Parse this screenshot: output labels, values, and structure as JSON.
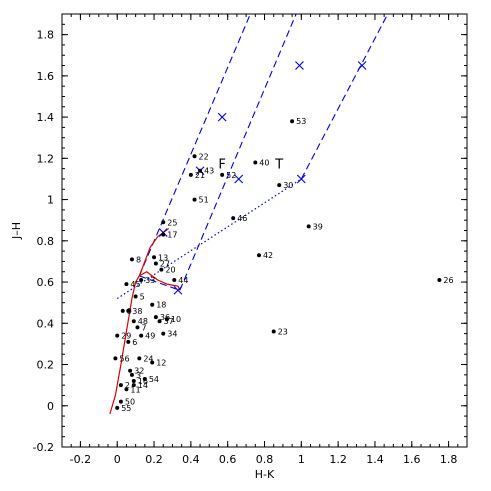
{
  "chart_data": {
    "type": "scatter",
    "xlabel": "H-K",
    "ylabel": "J–H",
    "xlim": [
      -0.3,
      1.9
    ],
    "ylim": [
      -0.2,
      1.9
    ],
    "xticks": [
      -0.2,
      0,
      0.2,
      0.4,
      0.6,
      0.8,
      1,
      1.2,
      1.4,
      1.6,
      1.8
    ],
    "xtick_labels": [
      "-0.2",
      "0",
      "0.2",
      "0.4",
      "0.6",
      "0.8",
      "1",
      "1.2",
      "1.4",
      "1.6",
      "1.8"
    ],
    "yticks": [
      -0.2,
      0,
      0.2,
      0.4,
      0.6,
      0.8,
      1,
      1.2,
      1.4,
      1.6,
      1.8
    ],
    "ytick_labels": [
      "-0.2",
      "0",
      "0.2",
      "0.4",
      "0.6",
      "0.8",
      "1",
      "1.2",
      "1.4",
      "1.6",
      "1.8"
    ],
    "grid": false,
    "annotations": [
      {
        "text": "F",
        "x": 0.57,
        "y": 1.17
      },
      {
        "text": "T",
        "x": 0.88,
        "y": 1.17
      }
    ],
    "points": [
      {
        "label": "22",
        "x": 0.42,
        "y": 1.21
      },
      {
        "label": "43",
        "x": 0.45,
        "y": 1.14
      },
      {
        "label": "21",
        "x": 0.4,
        "y": 1.12
      },
      {
        "label": "52",
        "x": 0.57,
        "y": 1.12
      },
      {
        "label": "40",
        "x": 0.75,
        "y": 1.18
      },
      {
        "label": "30",
        "x": 0.88,
        "y": 1.07
      },
      {
        "label": "53",
        "x": 0.95,
        "y": 1.38
      },
      {
        "label": "51",
        "x": 0.42,
        "y": 1.0
      },
      {
        "label": "46",
        "x": 0.63,
        "y": 0.91
      },
      {
        "label": "39",
        "x": 1.04,
        "y": 0.87
      },
      {
        "label": "25",
        "x": 0.25,
        "y": 0.89
      },
      {
        "label": "17",
        "x": 0.25,
        "y": 0.83
      },
      {
        "label": "42",
        "x": 0.77,
        "y": 0.73
      },
      {
        "label": "8",
        "x": 0.08,
        "y": 0.71
      },
      {
        "label": "13",
        "x": 0.2,
        "y": 0.72
      },
      {
        "label": "27",
        "x": 0.21,
        "y": 0.69
      },
      {
        "label": "20",
        "x": 0.24,
        "y": 0.66
      },
      {
        "label": "33",
        "x": 0.13,
        "y": 0.61
      },
      {
        "label": "44",
        "x": 0.31,
        "y": 0.61
      },
      {
        "label": "45",
        "x": 0.05,
        "y": 0.59
      },
      {
        "label": "26",
        "x": 1.75,
        "y": 0.61
      },
      {
        "label": "5",
        "x": 0.1,
        "y": 0.53
      },
      {
        "label": "18",
        "x": 0.19,
        "y": 0.49
      },
      {
        "label": "38",
        "x": 0.06,
        "y": 0.46
      },
      {
        "label": "9",
        "x": 0.03,
        "y": 0.46
      },
      {
        "label": "48",
        "x": 0.09,
        "y": 0.41
      },
      {
        "label": "36",
        "x": 0.21,
        "y": 0.43
      },
      {
        "label": "10",
        "x": 0.27,
        "y": 0.42
      },
      {
        "label": "37",
        "x": 0.23,
        "y": 0.41
      },
      {
        "label": "7",
        "x": 0.11,
        "y": 0.38
      },
      {
        "label": "49",
        "x": 0.13,
        "y": 0.34
      },
      {
        "label": "29",
        "x": 0.0,
        "y": 0.34
      },
      {
        "label": "34",
        "x": 0.25,
        "y": 0.35
      },
      {
        "label": "23",
        "x": 0.85,
        "y": 0.36
      },
      {
        "label": "6",
        "x": 0.06,
        "y": 0.31
      },
      {
        "label": "56",
        "x": -0.01,
        "y": 0.23
      },
      {
        "label": "24",
        "x": 0.12,
        "y": 0.23
      },
      {
        "label": "12",
        "x": 0.19,
        "y": 0.21
      },
      {
        "label": "32",
        "x": 0.07,
        "y": 0.17
      },
      {
        "label": "3",
        "x": 0.08,
        "y": 0.15
      },
      {
        "label": "16",
        "x": 0.09,
        "y": 0.12
      },
      {
        "label": "54",
        "x": 0.15,
        "y": 0.13
      },
      {
        "label": "14",
        "x": 0.09,
        "y": 0.1
      },
      {
        "label": "11",
        "x": 0.05,
        "y": 0.08
      },
      {
        "label": "2",
        "x": 0.02,
        "y": 0.1
      },
      {
        "label": "50",
        "x": 0.02,
        "y": 0.02
      },
      {
        "label": "55",
        "x": 0.0,
        "y": -0.01
      }
    ],
    "dashed_lines": [
      [
        [
          0.12,
          0.63
        ],
        [
          0.78,
          2.02
        ]
      ],
      [
        [
          0.34,
          0.56
        ],
        [
          1.0,
          1.96
        ]
      ],
      [
        [
          1.0,
          1.1
        ],
        [
          1.54,
          2.02
        ]
      ],
      [
        [
          0.12,
          0.63
        ],
        [
          0.34,
          0.56
        ]
      ]
    ],
    "dotted_lines": [
      [
        [
          0.0,
          0.52
        ],
        [
          1.0,
          1.1
        ]
      ]
    ],
    "solid_lines": [
      [
        [
          -0.04,
          -0.04
        ],
        [
          -0.01,
          0.05
        ],
        [
          0.02,
          0.2
        ],
        [
          0.05,
          0.36
        ],
        [
          0.08,
          0.52
        ],
        [
          0.1,
          0.6
        ],
        [
          0.12,
          0.63
        ]
      ],
      [
        [
          0.12,
          0.63
        ],
        [
          0.18,
          0.77
        ],
        [
          0.22,
          0.82
        ],
        [
          0.28,
          0.86
        ]
      ],
      [
        [
          0.12,
          0.63
        ],
        [
          0.16,
          0.65
        ],
        [
          0.22,
          0.61
        ],
        [
          0.27,
          0.59
        ],
        [
          0.33,
          0.58
        ],
        [
          0.34,
          0.56
        ]
      ]
    ],
    "cross_markers": [
      {
        "x": 0.25,
        "y": 0.84
      },
      {
        "x": 0.45,
        "y": 1.14
      },
      {
        "x": 0.57,
        "y": 1.4
      },
      {
        "x": 0.33,
        "y": 0.56
      },
      {
        "x": 0.66,
        "y": 1.1
      },
      {
        "x": 0.99,
        "y": 1.65
      },
      {
        "x": 1.0,
        "y": 1.1
      },
      {
        "x": 1.33,
        "y": 1.65
      }
    ],
    "colors": {
      "points": "#000000",
      "dashed": "#0000dd",
      "dotted": "#0000dd",
      "solid": "#dd0000",
      "axes": "#000000"
    }
  }
}
